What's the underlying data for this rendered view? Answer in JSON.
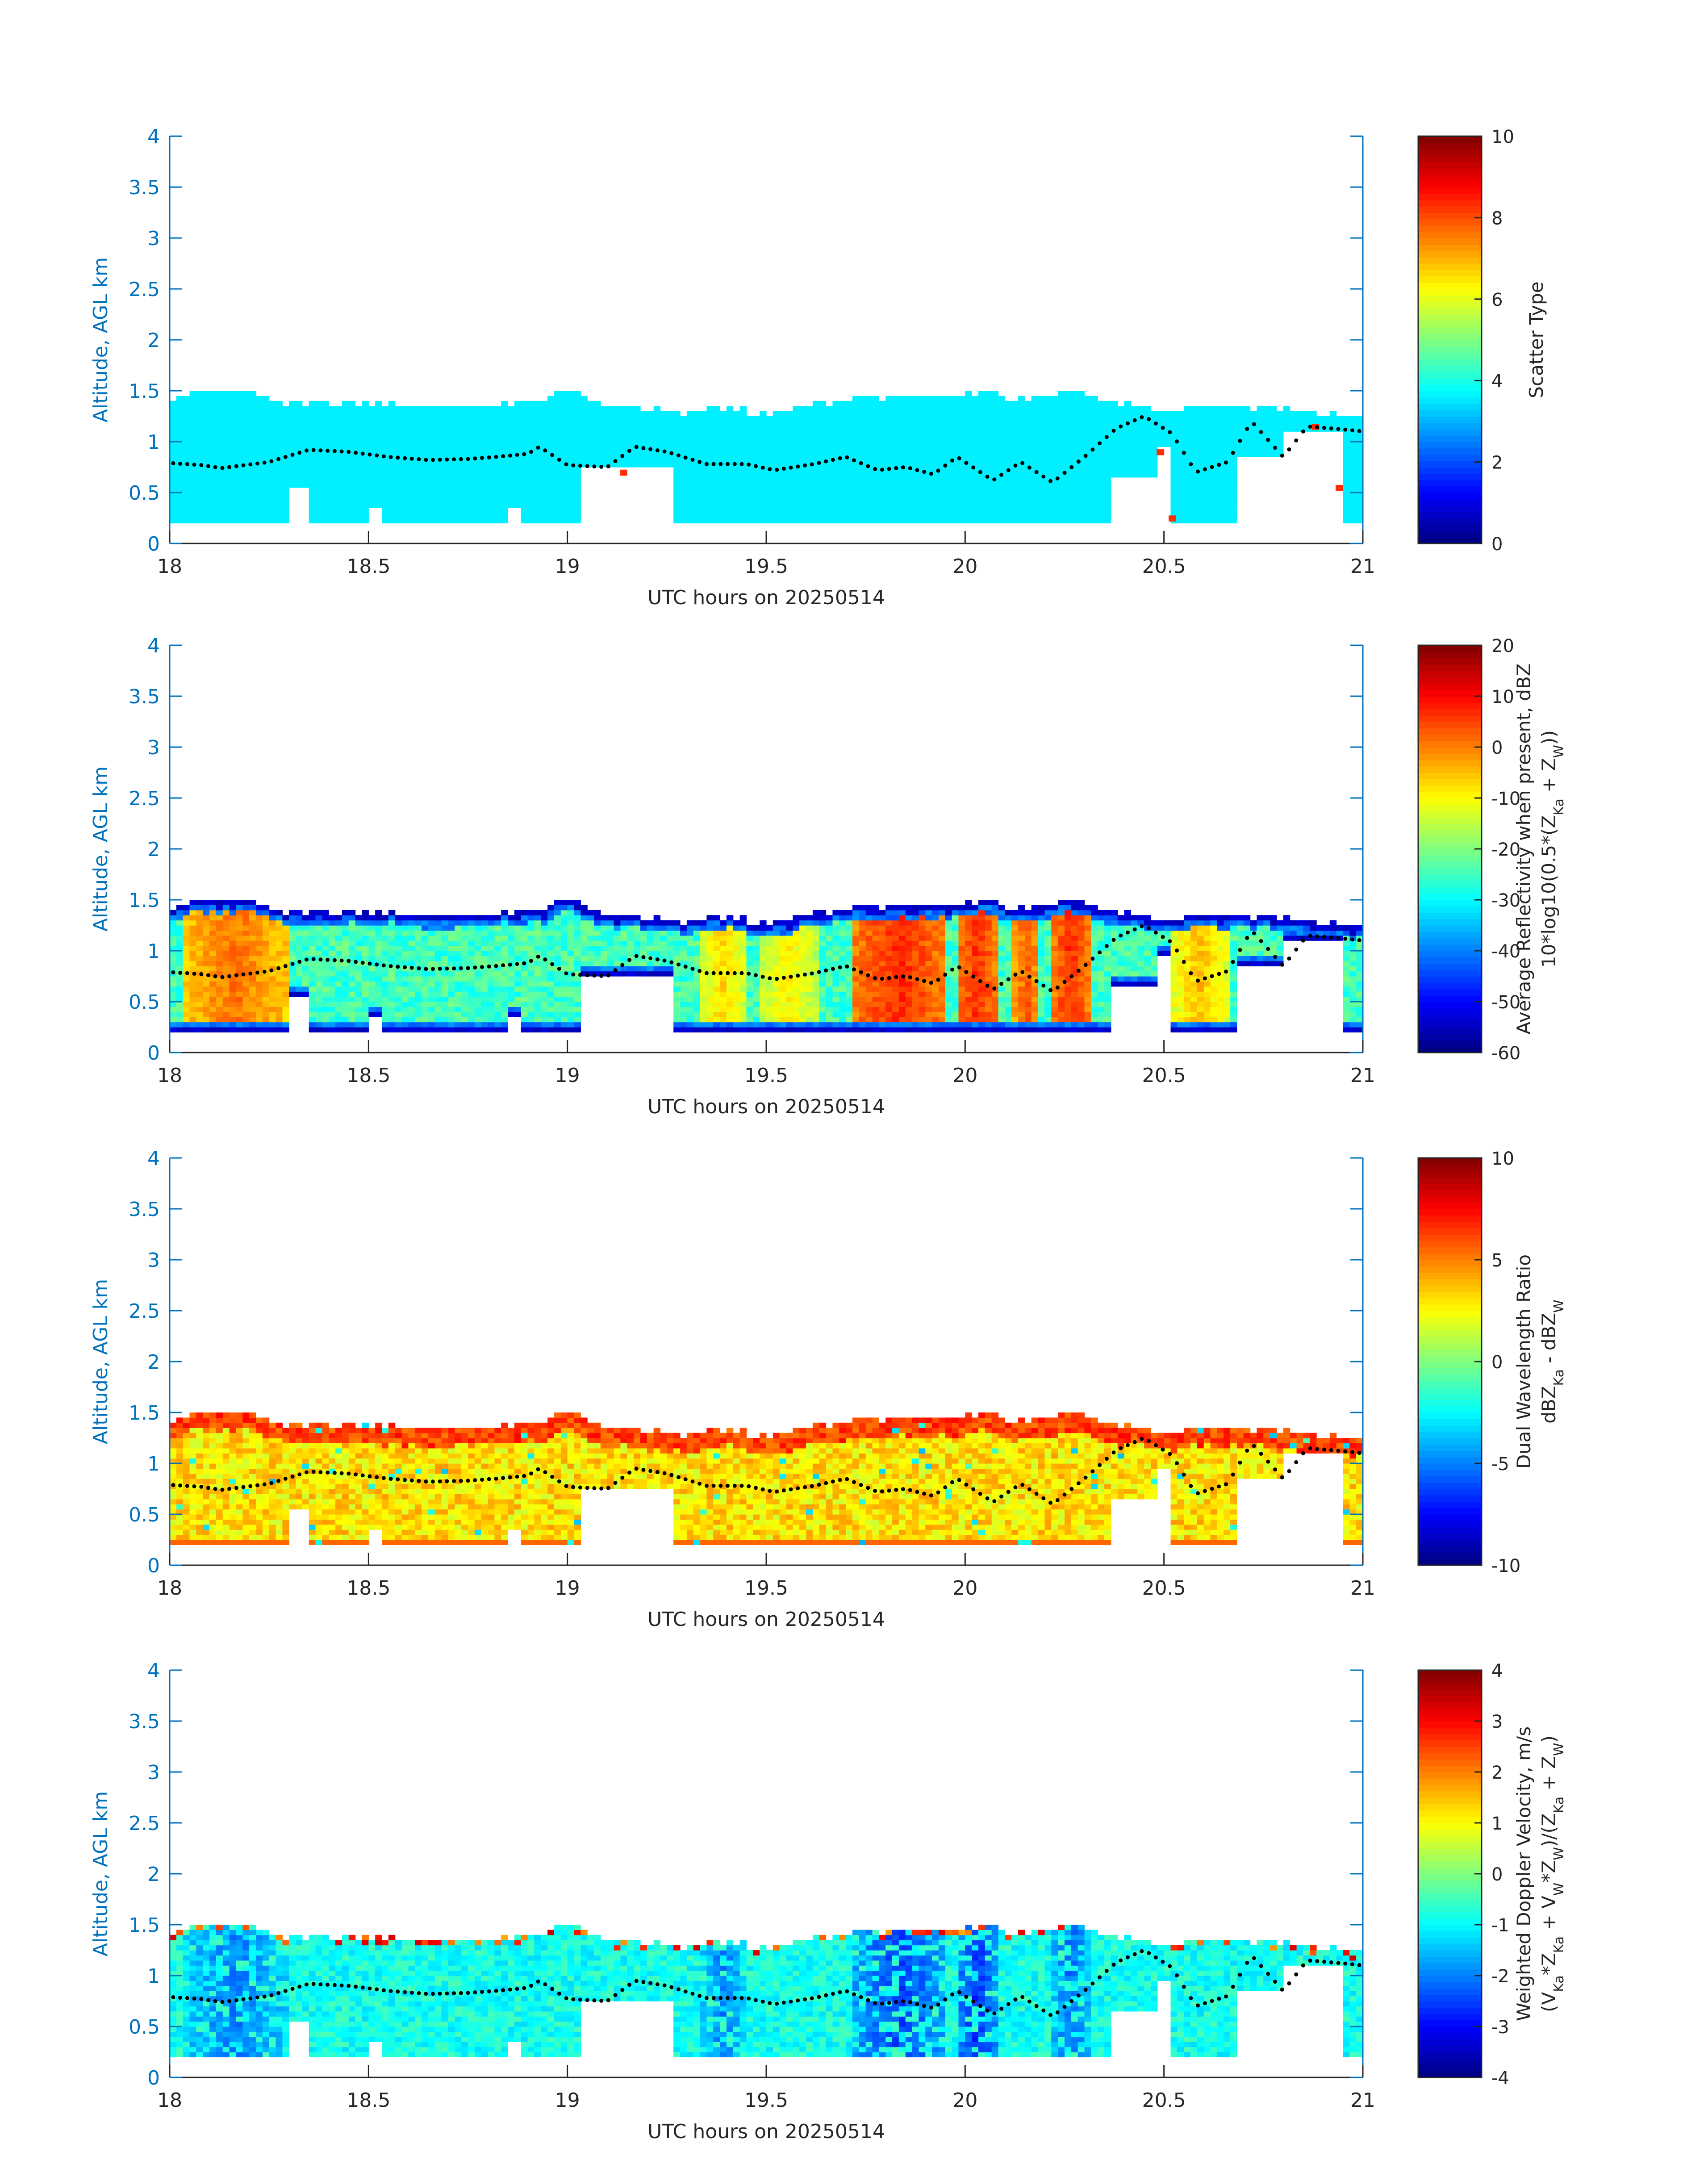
{
  "figure": {
    "axis_color": "#0072BD",
    "text_color": "#262626",
    "colormap": "jet",
    "dot_color": "#000000"
  },
  "chart_data": [
    {
      "type": "heatmap",
      "xlabel": "UTC hours on 20250514",
      "ylabel": "Altitude, AGL km",
      "xlim": [
        18,
        21
      ],
      "ylim": [
        0,
        4
      ],
      "x_ticks": [
        "18",
        "18.5",
        "19",
        "19.5",
        "20",
        "20.5",
        "21"
      ],
      "y_ticks": [
        "0",
        "0.5",
        "1",
        "1.5",
        "2",
        "2.5",
        "3",
        "3.5",
        "4"
      ],
      "colorbar": {
        "label_lines": [
          "Scatter Type"
        ],
        "range": [
          0,
          10
        ],
        "ticks": [
          "0",
          "2",
          "4",
          "6",
          "8",
          "10"
        ]
      },
      "field": {
        "kind": "scatter_type",
        "dominant_value": 3.6,
        "outliers": [
          {
            "x": 19.14,
            "y": 0.7,
            "value": 8.3
          },
          {
            "x": 20.49,
            "y": 0.9,
            "value": 8.3
          },
          {
            "x": 20.52,
            "y": 0.25,
            "value": 8.3
          },
          {
            "x": 20.88,
            "y": 1.15,
            "value": 8.3
          },
          {
            "x": 20.94,
            "y": 0.55,
            "value": 8.3
          }
        ]
      }
    },
    {
      "type": "heatmap",
      "xlabel": "UTC hours on 20250514",
      "ylabel": "Altitude, AGL km",
      "xlim": [
        18,
        21
      ],
      "ylim": [
        0,
        4
      ],
      "x_ticks": [
        "18",
        "18.5",
        "19",
        "19.5",
        "20",
        "20.5",
        "21"
      ],
      "y_ticks": [
        "0",
        "0.5",
        "1",
        "1.5",
        "2",
        "2.5",
        "3",
        "3.5",
        "4"
      ],
      "colorbar": {
        "label_lines": [
          "Average Reflectivity when present, dBZ",
          "10*log10(0.5*(Z_Ka + Z_W))"
        ],
        "range": [
          -60,
          20
        ],
        "ticks": [
          "-60",
          "-50",
          "-40",
          "-30",
          "-20",
          "-10",
          "0",
          "10",
          "20"
        ]
      },
      "field": {
        "kind": "reflectivity",
        "strong_periods": [
          {
            "x0": 18.03,
            "x1": 18.3,
            "peak": 2
          },
          {
            "x0": 19.33,
            "x1": 19.45,
            "peak": -6
          },
          {
            "x0": 19.48,
            "x1": 19.63,
            "peak": -8
          },
          {
            "x0": 19.72,
            "x1": 19.95,
            "peak": 8
          },
          {
            "x0": 19.98,
            "x1": 20.08,
            "peak": 8
          },
          {
            "x0": 20.12,
            "x1": 20.19,
            "peak": 4
          },
          {
            "x0": 20.22,
            "x1": 20.31,
            "peak": 8
          },
          {
            "x0": 20.52,
            "x1": 20.66,
            "peak": -4
          }
        ]
      }
    },
    {
      "type": "heatmap",
      "xlabel": "UTC hours on 20250514",
      "ylabel": "Altitude, AGL km",
      "xlim": [
        18,
        21
      ],
      "ylim": [
        0,
        4
      ],
      "x_ticks": [
        "18",
        "18.5",
        "19",
        "19.5",
        "20",
        "20.5",
        "21"
      ],
      "y_ticks": [
        "0",
        "0.5",
        "1",
        "1.5",
        "2",
        "2.5",
        "3",
        "3.5",
        "4"
      ],
      "colorbar": {
        "label_lines": [
          "Dual Wavelength Ratio",
          "dBZ_Ka - dBZ_W"
        ],
        "range": [
          -10,
          10
        ],
        "ticks": [
          "-10",
          "-5",
          "0",
          "5",
          "10"
        ]
      },
      "field": {
        "kind": "dwr",
        "typical_value": 2.5,
        "top_value": 6.5
      }
    },
    {
      "type": "heatmap",
      "xlabel": "UTC hours on 20250514",
      "ylabel": "Altitude, AGL km",
      "xlim": [
        18,
        21
      ],
      "ylim": [
        0,
        4
      ],
      "x_ticks": [
        "18",
        "18.5",
        "19",
        "19.5",
        "20",
        "20.5",
        "21"
      ],
      "y_ticks": [
        "0",
        "0.5",
        "1",
        "1.5",
        "2",
        "2.5",
        "3",
        "3.5",
        "4"
      ],
      "colorbar": {
        "label_lines": [
          "Weighted Doppler Velocity, m/s",
          "(V_Ka*Z_Ka + V_W*Z_W)/(Z_Ka + Z_W)"
        ],
        "range": [
          -4,
          4
        ],
        "ticks": [
          "-4",
          "-3",
          "-2",
          "-1",
          "0",
          "1",
          "2",
          "3",
          "4"
        ]
      },
      "field": {
        "kind": "velocity",
        "typical_value": -0.9,
        "downdraft_periods": [
          {
            "x0": 18.03,
            "x1": 18.3,
            "peak": -2.3
          },
          {
            "x0": 19.33,
            "x1": 19.45,
            "peak": -2.3
          },
          {
            "x0": 19.72,
            "x1": 19.95,
            "peak": -2.8
          },
          {
            "x0": 19.98,
            "x1": 20.08,
            "peak": -3.0
          },
          {
            "x0": 20.22,
            "x1": 20.31,
            "peak": -2.5
          }
        ]
      }
    }
  ],
  "cloud_profile": {
    "x_start": 18.0,
    "x_end": 21.0,
    "cloud_base_km": 0.2,
    "cloud_top_km": [
      [
        18.0,
        1.42
      ],
      [
        18.06,
        1.5
      ],
      [
        18.2,
        1.5
      ],
      [
        18.3,
        1.38
      ],
      [
        18.5,
        1.38
      ],
      [
        18.7,
        1.35
      ],
      [
        18.85,
        1.38
      ],
      [
        18.95,
        1.4
      ],
      [
        19.0,
        1.55
      ],
      [
        19.05,
        1.38
      ],
      [
        19.15,
        1.35
      ],
      [
        19.3,
        1.28
      ],
      [
        19.4,
        1.35
      ],
      [
        19.5,
        1.25
      ],
      [
        19.6,
        1.35
      ],
      [
        19.7,
        1.42
      ],
      [
        19.85,
        1.45
      ],
      [
        20.0,
        1.45
      ],
      [
        20.05,
        1.5
      ],
      [
        20.15,
        1.4
      ],
      [
        20.28,
        1.5
      ],
      [
        20.38,
        1.38
      ],
      [
        20.5,
        1.3
      ],
      [
        20.6,
        1.35
      ],
      [
        20.7,
        1.35
      ],
      [
        20.85,
        1.3
      ],
      [
        20.95,
        1.25
      ],
      [
        21.0,
        1.25
      ]
    ],
    "gaps": [
      {
        "x0": 18.3,
        "x1": 18.35,
        "top_km": 0.55
      },
      {
        "x0": 18.5,
        "x1": 18.53,
        "top_km": 0.35
      },
      {
        "x0": 18.85,
        "x1": 18.88,
        "top_km": 0.35
      },
      {
        "x0": 19.04,
        "x1": 19.27,
        "top_km": 0.75
      },
      {
        "x0": 20.36,
        "x1": 20.48,
        "top_km": 0.65
      },
      {
        "x0": 20.48,
        "x1": 20.52,
        "top_km": 0.95
      },
      {
        "x0": 20.68,
        "x1": 20.8,
        "top_km": 0.85
      },
      {
        "x0": 20.8,
        "x1": 20.95,
        "top_km": 1.1
      }
    ],
    "dotted_level_km": [
      [
        18.0,
        0.79
      ],
      [
        18.08,
        0.77
      ],
      [
        18.13,
        0.74
      ],
      [
        18.25,
        0.8
      ],
      [
        18.35,
        0.92
      ],
      [
        18.45,
        0.9
      ],
      [
        18.55,
        0.85
      ],
      [
        18.65,
        0.82
      ],
      [
        18.75,
        0.83
      ],
      [
        18.82,
        0.85
      ],
      [
        18.9,
        0.88
      ],
      [
        18.93,
        0.95
      ],
      [
        19.0,
        0.77
      ],
      [
        19.1,
        0.75
      ],
      [
        19.17,
        0.95
      ],
      [
        19.25,
        0.9
      ],
      [
        19.35,
        0.78
      ],
      [
        19.45,
        0.78
      ],
      [
        19.52,
        0.72
      ],
      [
        19.62,
        0.78
      ],
      [
        19.7,
        0.85
      ],
      [
        19.78,
        0.72
      ],
      [
        19.85,
        0.75
      ],
      [
        19.92,
        0.68
      ],
      [
        19.98,
        0.85
      ],
      [
        20.07,
        0.62
      ],
      [
        20.14,
        0.8
      ],
      [
        20.22,
        0.6
      ],
      [
        20.3,
        0.85
      ],
      [
        20.38,
        1.13
      ],
      [
        20.45,
        1.25
      ],
      [
        20.52,
        1.08
      ],
      [
        20.58,
        0.7
      ],
      [
        20.66,
        0.8
      ],
      [
        20.72,
        1.2
      ],
      [
        20.8,
        0.85
      ],
      [
        20.86,
        1.15
      ],
      [
        20.95,
        1.12
      ],
      [
        21.0,
        1.1
      ]
    ]
  }
}
